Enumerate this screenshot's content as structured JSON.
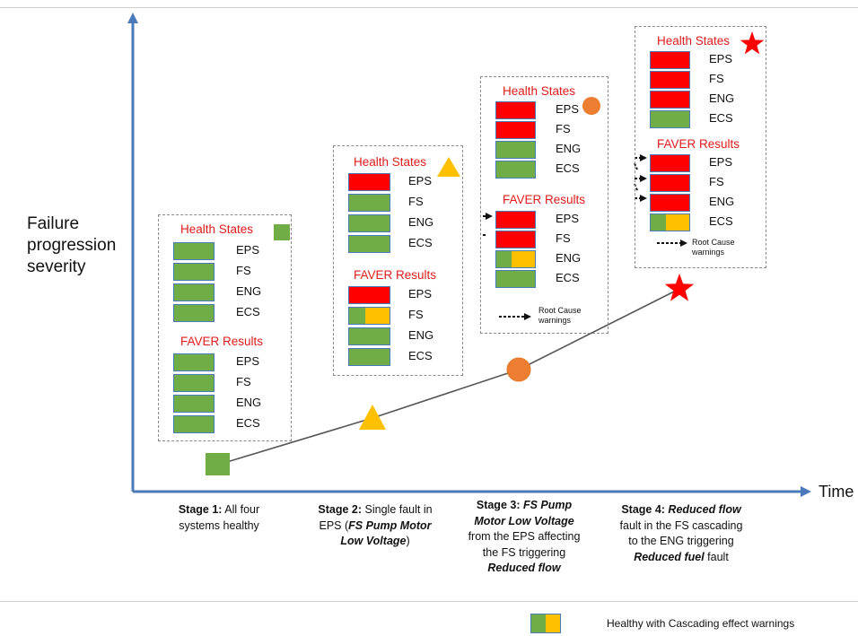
{
  "axes": {
    "y_label_lines": [
      "Failure",
      "progression",
      "severity"
    ],
    "x_label": "Time"
  },
  "colors": {
    "red": "#ff0000",
    "green": "#70ad47",
    "yellow": "#ffc000",
    "orange": "#ed7d31",
    "title_red": "#e01b1b",
    "axis_blue": "#4a7ab8",
    "line": "#555555"
  },
  "section_titles": {
    "health": "Health States",
    "faver": "FAVER Results"
  },
  "panels": [
    {
      "marker": "green-square",
      "health": [
        {
          "label": "EPS",
          "state": "green"
        },
        {
          "label": "FS",
          "state": "green"
        },
        {
          "label": "ENG",
          "state": "green"
        },
        {
          "label": "ECS",
          "state": "green"
        }
      ],
      "faver": [
        {
          "label": "EPS",
          "state": "green"
        },
        {
          "label": "FS",
          "state": "green"
        },
        {
          "label": "ENG",
          "state": "green"
        },
        {
          "label": "ECS",
          "state": "green"
        }
      ],
      "warning_note": ""
    },
    {
      "marker": "yellow-triangle",
      "health": [
        {
          "label": "EPS",
          "state": "red"
        },
        {
          "label": "FS",
          "state": "green"
        },
        {
          "label": "ENG",
          "state": "green"
        },
        {
          "label": "ECS",
          "state": "green"
        }
      ],
      "faver": [
        {
          "label": "EPS",
          "state": "red"
        },
        {
          "label": "FS",
          "state": "cascade"
        },
        {
          "label": "ENG",
          "state": "green"
        },
        {
          "label": "ECS",
          "state": "green"
        }
      ],
      "warning_note": ""
    },
    {
      "marker": "orange-circle",
      "health": [
        {
          "label": "EPS",
          "state": "red"
        },
        {
          "label": "FS",
          "state": "red"
        },
        {
          "label": "ENG",
          "state": "green"
        },
        {
          "label": "ECS",
          "state": "green"
        }
      ],
      "faver": [
        {
          "label": "EPS",
          "state": "red"
        },
        {
          "label": "FS",
          "state": "red"
        },
        {
          "label": "ENG",
          "state": "cascade"
        },
        {
          "label": "ECS",
          "state": "green"
        }
      ],
      "warning_note": "Root Cause warnings"
    },
    {
      "marker": "red-star",
      "health": [
        {
          "label": "EPS",
          "state": "red"
        },
        {
          "label": "FS",
          "state": "red"
        },
        {
          "label": "ENG",
          "state": "red"
        },
        {
          "label": "ECS",
          "state": "green"
        }
      ],
      "faver": [
        {
          "label": "EPS",
          "state": "red"
        },
        {
          "label": "FS",
          "state": "red"
        },
        {
          "label": "ENG",
          "state": "red"
        },
        {
          "label": "ECS",
          "state": "cascade"
        }
      ],
      "warning_note": "Root Cause warnings"
    }
  ],
  "stages": [
    {
      "parts": [
        {
          "t": "Stage 1:",
          "s": "hd"
        },
        {
          "t": " All four systems healthy",
          "s": ""
        }
      ]
    },
    {
      "parts": [
        {
          "t": "Stage 2:",
          "s": "hd"
        },
        {
          "t": " Single fault in EPS (",
          "s": ""
        },
        {
          "t": "FS Pump Motor Low Voltage",
          "s": "em"
        },
        {
          "t": ")",
          "s": ""
        }
      ]
    },
    {
      "parts": [
        {
          "t": "Stage 3: ",
          "s": "hd"
        },
        {
          "t": "FS Pump Motor Low Voltage",
          "s": "em"
        },
        {
          "t": " from the EPS affecting the FS triggering ",
          "s": ""
        },
        {
          "t": "Reduced flow",
          "s": "em"
        }
      ]
    },
    {
      "parts": [
        {
          "t": "Stage 4: ",
          "s": "hd"
        },
        {
          "t": "Reduced flow",
          "s": "em"
        },
        {
          "t": " fault in the FS cascading to the ENG triggering ",
          "s": ""
        },
        {
          "t": "Reduced fuel",
          "s": "em"
        },
        {
          "t": " fault",
          "s": ""
        }
      ]
    }
  ],
  "legend": {
    "text": "Healthy with Cascading effect warnings"
  }
}
